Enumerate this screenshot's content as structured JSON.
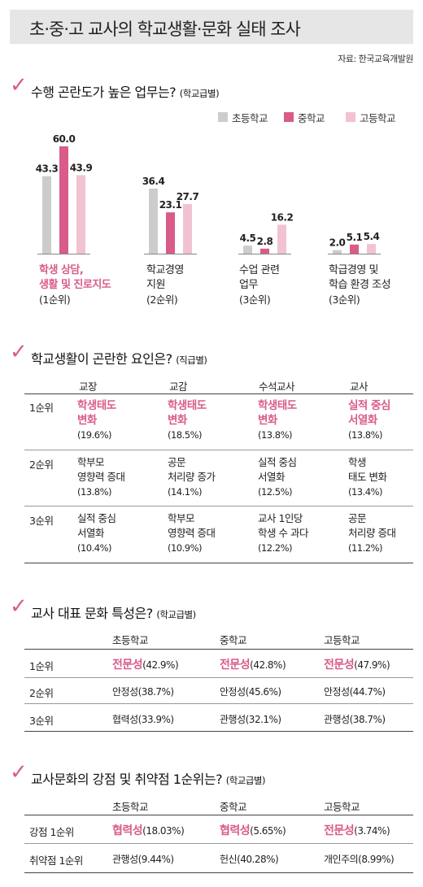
{
  "title": "초·중·고 교사의 학교생활·문화 실태 조사",
  "source": "자료: 한국교육개발원",
  "colors": {
    "elementary": "#cccccc",
    "middle": "#d95b8a",
    "high": "#f1c3d2",
    "accent": "#d95b8a"
  },
  "section1": {
    "title": "수행 곤란도가 높은 업무는?",
    "sub": "(학교급별)"
  },
  "legend": [
    "초등학교",
    "중학교",
    "고등학교"
  ],
  "chart_data": {
    "type": "bar",
    "title": "수행 곤란도가 높은 업무는?",
    "categories": [
      "학생 상담, 생활 및 진로지도",
      "학교경영 지원",
      "수업 관련 업무",
      "학급경영 및 학습 환경 조성"
    ],
    "series": [
      {
        "name": "초등학교",
        "values": [
          43.3,
          36.4,
          4.5,
          2.0
        ]
      },
      {
        "name": "중학교",
        "values": [
          60.0,
          23.1,
          2.8,
          5.1
        ]
      },
      {
        "name": "고등학교",
        "values": [
          43.9,
          27.7,
          16.2,
          5.4
        ]
      }
    ],
    "value_labels": [
      [
        "43.3",
        "36.4",
        "4.5",
        "2.0"
      ],
      [
        "60.0",
        "23.1",
        "2.8",
        "5.1"
      ],
      [
        "43.9",
        "27.7",
        "16.2",
        "5.4"
      ]
    ],
    "legend_position": "top-right",
    "ylim": [
      0,
      60
    ]
  },
  "cats": [
    {
      "l1": "학생 상담,",
      "l2": "생활 및 진로지도",
      "rank": "(1순위)"
    },
    {
      "l1": "학교경영",
      "l2": "지원",
      "rank": "(2순위)"
    },
    {
      "l1": "수업 관련",
      "l2": "업무",
      "rank": "(3순위)"
    },
    {
      "l1": "학급경영 및",
      "l2": "학습 환경 조성",
      "rank": "(3순위)"
    }
  ],
  "section2": {
    "title": "학교생활이 곤란한 요인은?",
    "sub": "(직급별)",
    "headers": [
      "교장",
      "교감",
      "수석교사",
      "교사"
    ],
    "rows": [
      {
        "rank": "1순위",
        "cells": [
          {
            "l1": "학생태도",
            "l2": "변화",
            "p": "(19.6%)"
          },
          {
            "l1": "학생태도",
            "l2": "변화",
            "p": "(18.5%)"
          },
          {
            "l1": "학생태도",
            "l2": "변화",
            "p": "(13.8%)"
          },
          {
            "l1": "실적 중심",
            "l2": "서열화",
            "p": "(13.8%)"
          }
        ]
      },
      {
        "rank": "2순위",
        "cells": [
          {
            "l1": "학부모",
            "l2": "영향력 증대",
            "p": "(13.8%)"
          },
          {
            "l1": "공문",
            "l2": "처리량 증가",
            "p": "(14.1%)"
          },
          {
            "l1": "실적 중심",
            "l2": "서열화",
            "p": "(12.5%)"
          },
          {
            "l1": "학생",
            "l2": "태도 변화",
            "p": "(13.4%)"
          }
        ]
      },
      {
        "rank": "3순위",
        "cells": [
          {
            "l1": "실적 중심",
            "l2": "서열화",
            "p": "(10.4%)"
          },
          {
            "l1": "학부모",
            "l2": "영향력 증대",
            "p": "(10.9%)"
          },
          {
            "l1": "교사 1인당",
            "l2": "학생 수 과다",
            "p": "(12.2%)"
          },
          {
            "l1": "공문",
            "l2": "처리량 증대",
            "p": "(11.2%)"
          }
        ]
      }
    ]
  },
  "section3": {
    "title": "교사 대표 문화 특성은?",
    "sub": "(학교급별)",
    "headers": [
      "초등학교",
      "중학교",
      "고등학교"
    ],
    "rows": [
      {
        "rank": "1순위",
        "cells": [
          {
            "n": "전문성",
            "p": "(42.9%)"
          },
          {
            "n": "전문성",
            "p": "(42.8%)"
          },
          {
            "n": "전문성",
            "p": "(47.9%)"
          }
        ]
      },
      {
        "rank": "2순위",
        "cells": [
          {
            "n": "안정성",
            "p": "(38.7%)"
          },
          {
            "n": "안정성",
            "p": "(45.6%)"
          },
          {
            "n": "안정성",
            "p": "(44.7%)"
          }
        ]
      },
      {
        "rank": "3순위",
        "cells": [
          {
            "n": "협력성",
            "p": "(33.9%)"
          },
          {
            "n": "관행성",
            "p": "(32.1%)"
          },
          {
            "n": "관행성",
            "p": "(38.7%)"
          }
        ]
      }
    ]
  },
  "section4": {
    "title": "교사문화의 강점 및 취약점 1순위는?",
    "sub": "(학교급별)",
    "headers": [
      "초등학교",
      "중학교",
      "고등학교"
    ],
    "rows": [
      {
        "rank": "강점 1순위",
        "cells": [
          {
            "n": "협력성",
            "p": "(18.03%)"
          },
          {
            "n": "협력성",
            "p": "(5.65%)"
          },
          {
            "n": "전문성",
            "p": "(3.74%)"
          }
        ]
      },
      {
        "rank": "취약점 1순위",
        "cells": [
          {
            "n": "관행성",
            "p": "(9.44%)"
          },
          {
            "n": "헌신",
            "p": "(40.28%)"
          },
          {
            "n": "개인주의",
            "p": "(8.99%)"
          }
        ]
      }
    ]
  }
}
